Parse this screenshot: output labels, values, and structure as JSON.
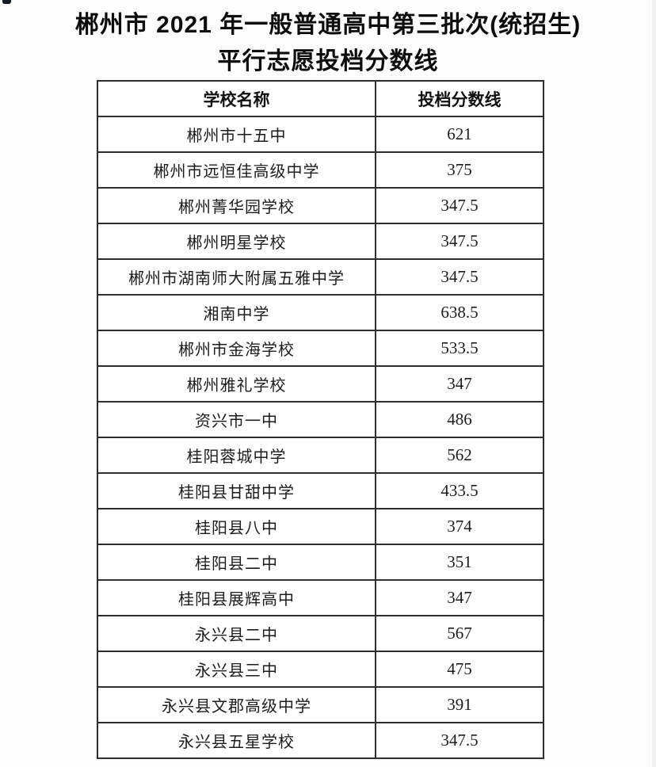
{
  "page": {
    "title_line1": "郴州市 2021 年一般普通高中第三批次(统招生)",
    "title_line2": "平行志愿投档分数线"
  },
  "table": {
    "headers": [
      "学校名称",
      "投档分数线"
    ],
    "rows": [
      [
        "郴州市十五中",
        "621"
      ],
      [
        "郴州市远恒佳高级中学",
        "375"
      ],
      [
        "郴州菁华园学校",
        "347.5"
      ],
      [
        "郴州明星学校",
        "347.5"
      ],
      [
        "郴州市湖南师大附属五雅中学",
        "347.5"
      ],
      [
        "湘南中学",
        "638.5"
      ],
      [
        "郴州市金海学校",
        "533.5"
      ],
      [
        "郴州雅礼学校",
        "347"
      ],
      [
        "资兴市一中",
        "486"
      ],
      [
        "桂阳蓉城中学",
        "562"
      ],
      [
        "桂阳县甘甜中学",
        "433.5"
      ],
      [
        "桂阳县八中",
        "374"
      ],
      [
        "桂阳县二中",
        "351"
      ],
      [
        "桂阳县展辉高中",
        "347"
      ],
      [
        "永兴县二中",
        "567"
      ],
      [
        "永兴县三中",
        "475"
      ],
      [
        "永兴县文郡高级中学",
        "391"
      ],
      [
        "永兴县五星学校",
        "347.5"
      ]
    ]
  },
  "colors": {
    "background": "#fdfdfd",
    "table_border": "#2e2e2e",
    "text": "#161616"
  }
}
